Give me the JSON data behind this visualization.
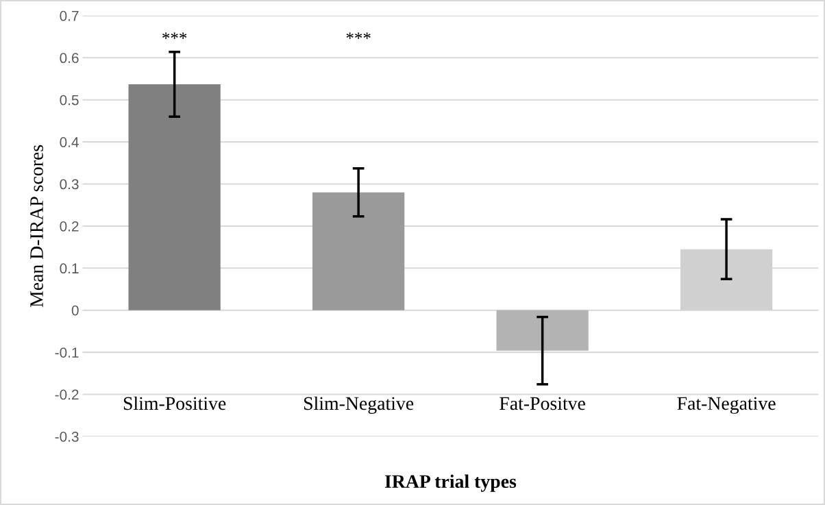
{
  "chart_data": {
    "type": "bar",
    "xlabel": "IRAP trial types",
    "ylabel": "Mean D-IRAP scores",
    "categories": [
      "Slim-Positive",
      "Slim-Negative",
      "Fat-Positve",
      "Fat-Negative"
    ],
    "values": [
      0.537,
      0.28,
      -0.096,
      0.145
    ],
    "errors": [
      0.077,
      0.057,
      0.08,
      0.071
    ],
    "colors": [
      "#808080",
      "#9a9a9a",
      "#b3b3b3",
      "#d0d0d0"
    ],
    "ylim": [
      -0.3,
      0.7
    ],
    "yticks": [
      -0.3,
      -0.2,
      -0.1,
      0,
      0.1,
      0.2,
      0.3,
      0.4,
      0.5,
      0.6,
      0.7
    ],
    "grid": "y",
    "annotations": [
      "***",
      "***"
    ]
  }
}
